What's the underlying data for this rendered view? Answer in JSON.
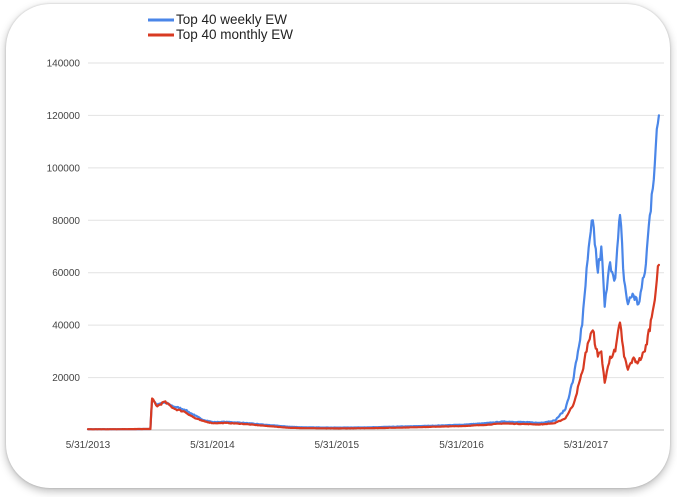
{
  "chart_data": {
    "type": "line",
    "title": "",
    "xlabel": "",
    "ylabel": "",
    "ylim": [
      0,
      140000
    ],
    "y_ticks": [
      20000,
      40000,
      60000,
      80000,
      100000,
      120000,
      140000
    ],
    "x_tick_labels": [
      "5/31/2013",
      "5/31/2014",
      "5/31/2015",
      "5/31/2016",
      "5/31/2017"
    ],
    "x_tick_dates": [
      "2013-05-31",
      "2014-05-31",
      "2015-05-31",
      "2016-05-31",
      "2017-05-31"
    ],
    "xlim": [
      "2013-05-31",
      "2018-01-15"
    ],
    "grid": "horizontal",
    "legend_position": "top-left",
    "series": [
      {
        "name": "Top 40 weekly EW",
        "color": "#4a86e8",
        "points": [
          [
            "2013-05-31",
            300
          ],
          [
            "2013-09-01",
            300
          ],
          [
            "2013-11-30",
            400
          ],
          [
            "2013-12-05",
            11800
          ],
          [
            "2013-12-20",
            9500
          ],
          [
            "2014-01-10",
            10500
          ],
          [
            "2014-02-10",
            8800
          ],
          [
            "2014-03-10",
            7800
          ],
          [
            "2014-04-10",
            5500
          ],
          [
            "2014-05-01",
            4000
          ],
          [
            "2014-06-01",
            3000
          ],
          [
            "2014-07-10",
            3100
          ],
          [
            "2014-09-01",
            2700
          ],
          [
            "2014-11-01",
            2000
          ],
          [
            "2015-01-15",
            1200
          ],
          [
            "2015-03-01",
            1000
          ],
          [
            "2015-05-31",
            900
          ],
          [
            "2015-09-01",
            1000
          ],
          [
            "2015-12-01",
            1300
          ],
          [
            "2016-03-01",
            1600
          ],
          [
            "2016-05-31",
            2000
          ],
          [
            "2016-08-01",
            2500
          ],
          [
            "2016-10-01",
            3200
          ],
          [
            "2016-12-01",
            3000
          ],
          [
            "2017-01-15",
            2700
          ],
          [
            "2017-03-01",
            3600
          ],
          [
            "2017-04-01",
            8000
          ],
          [
            "2017-04-25",
            20000
          ],
          [
            "2017-05-20",
            40000
          ],
          [
            "2017-06-05",
            65000
          ],
          [
            "2017-06-20",
            80000
          ],
          [
            "2017-07-05",
            60000
          ],
          [
            "2017-07-15",
            70000
          ],
          [
            "2017-07-25",
            47000
          ],
          [
            "2017-08-10",
            64000
          ],
          [
            "2017-08-25",
            58000
          ],
          [
            "2017-09-08",
            82000
          ],
          [
            "2017-09-20",
            57000
          ],
          [
            "2017-10-01",
            48000
          ],
          [
            "2017-10-15",
            52000
          ],
          [
            "2017-11-01",
            48000
          ],
          [
            "2017-11-20",
            60000
          ],
          [
            "2017-12-10",
            90000
          ],
          [
            "2017-12-31",
            120000
          ]
        ]
      },
      {
        "name": "Top 40 monthly EW",
        "color": "#d83a22",
        "points": [
          [
            "2013-05-31",
            300
          ],
          [
            "2013-09-01",
            300
          ],
          [
            "2013-11-30",
            400
          ],
          [
            "2013-12-05",
            12000
          ],
          [
            "2013-12-20",
            9000
          ],
          [
            "2014-01-10",
            10800
          ],
          [
            "2014-02-10",
            8000
          ],
          [
            "2014-03-10",
            7000
          ],
          [
            "2014-04-10",
            4500
          ],
          [
            "2014-05-01",
            3500
          ],
          [
            "2014-06-01",
            2600
          ],
          [
            "2014-07-10",
            2700
          ],
          [
            "2014-09-01",
            2300
          ],
          [
            "2014-11-01",
            1600
          ],
          [
            "2015-01-15",
            800
          ],
          [
            "2015-03-01",
            700
          ],
          [
            "2015-05-31",
            600
          ],
          [
            "2015-09-01",
            700
          ],
          [
            "2015-12-01",
            900
          ],
          [
            "2016-03-01",
            1200
          ],
          [
            "2016-05-31",
            1500
          ],
          [
            "2016-08-01",
            1900
          ],
          [
            "2016-10-01",
            2500
          ],
          [
            "2016-12-01",
            2300
          ],
          [
            "2017-01-15",
            2100
          ],
          [
            "2017-03-01",
            2600
          ],
          [
            "2017-04-01",
            4500
          ],
          [
            "2017-04-25",
            10000
          ],
          [
            "2017-05-20",
            22000
          ],
          [
            "2017-06-05",
            33000
          ],
          [
            "2017-06-20",
            38000
          ],
          [
            "2017-07-05",
            28000
          ],
          [
            "2017-07-15",
            30000
          ],
          [
            "2017-07-25",
            18000
          ],
          [
            "2017-08-10",
            28000
          ],
          [
            "2017-08-25",
            30000
          ],
          [
            "2017-09-08",
            41000
          ],
          [
            "2017-09-20",
            28000
          ],
          [
            "2017-10-01",
            23000
          ],
          [
            "2017-10-15",
            27000
          ],
          [
            "2017-11-01",
            26000
          ],
          [
            "2017-11-20",
            30000
          ],
          [
            "2017-12-10",
            43000
          ],
          [
            "2017-12-31",
            63000
          ]
        ]
      }
    ]
  }
}
